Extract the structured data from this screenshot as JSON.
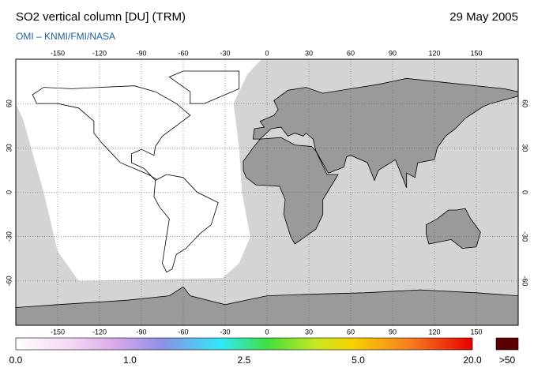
{
  "header": {
    "title": "SO2 vertical column [DU] (TRM)",
    "date": "29 May 2005",
    "credit": "OMI  –  KNMI/FMI/NASA"
  },
  "map": {
    "lon_ticks": [
      -150,
      -120,
      -90,
      -60,
      -30,
      0,
      30,
      60,
      90,
      120,
      150
    ],
    "lat_ticks": [
      60,
      30,
      0,
      -30,
      -60
    ]
  },
  "colorbar": {
    "labels": [
      "0.0",
      "1.0",
      "2.5",
      "5.0",
      "20.0"
    ],
    "overflow_label": ">50"
  }
}
